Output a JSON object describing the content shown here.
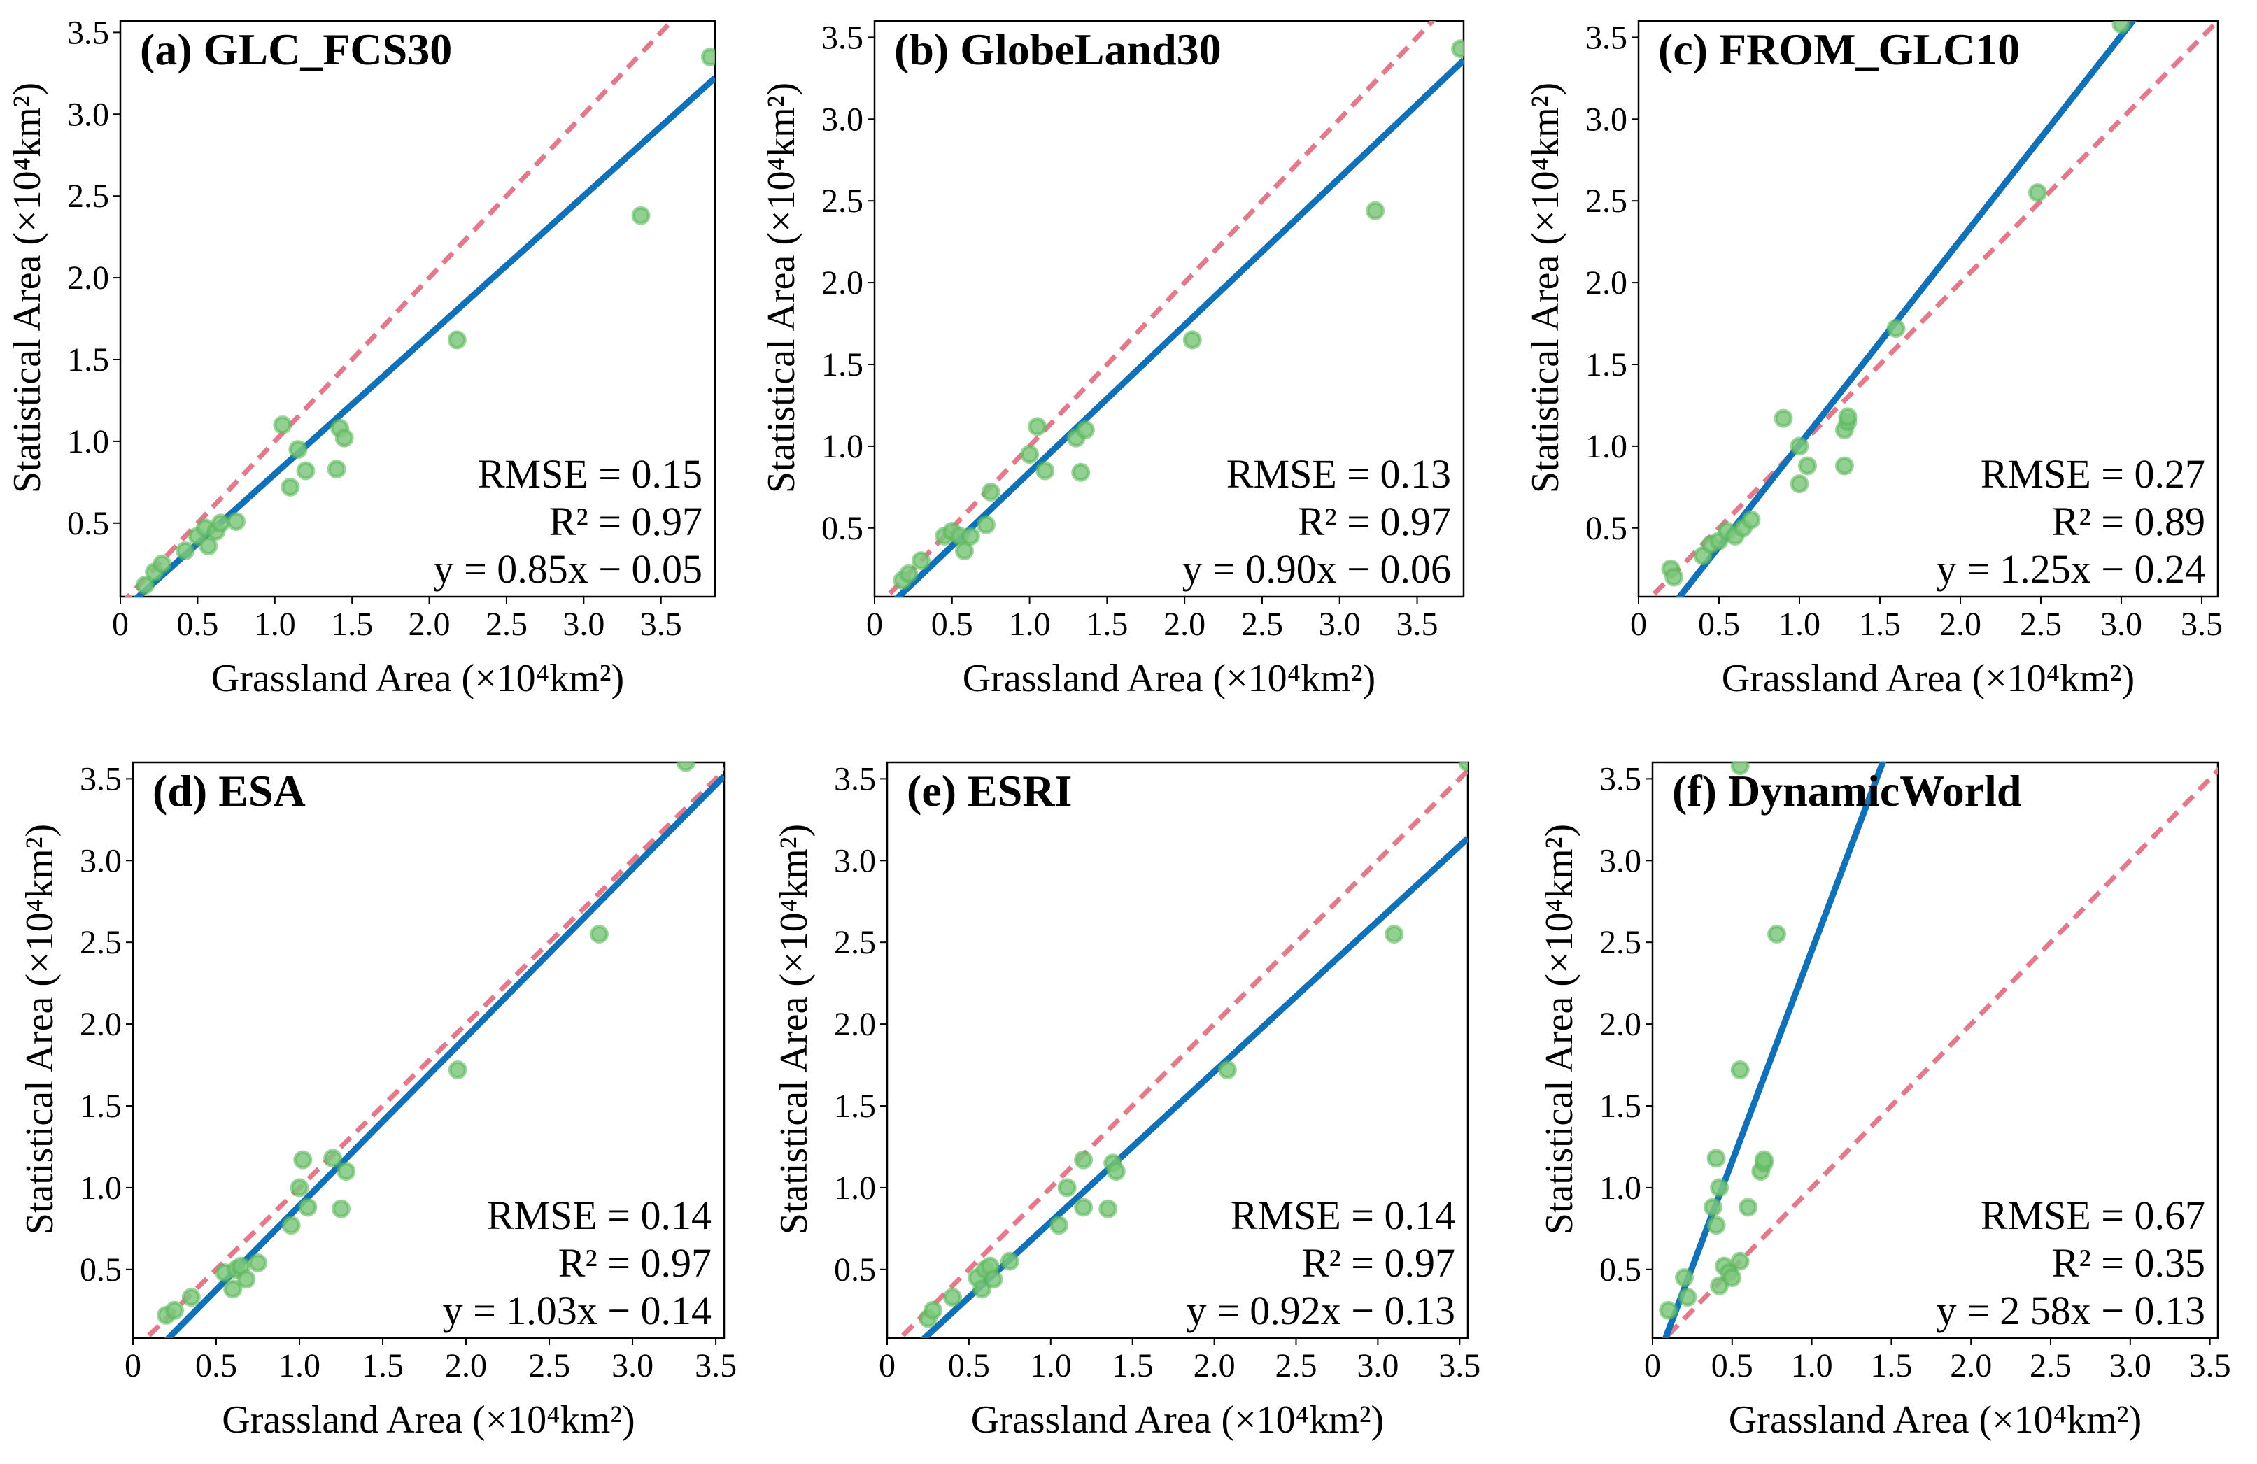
{
  "figure": {
    "x_label": "Grassland Area (×10⁴km²)",
    "y_label": "Statistical  Area (×10⁴km²)"
  },
  "colors": {
    "fit_line": "#1070b8",
    "identity_line": "#e27a8c",
    "point_fill": "#7ec87e",
    "point_stroke": "#5cb85c",
    "frame": "#000000"
  },
  "chart_data": [
    {
      "type": "scatter",
      "title": "(a) GLC_FCS30",
      "xlabel": "Grassland Area (×10⁴km²)",
      "ylabel": "Statistical  Area (×10⁴km²)",
      "xlim": [
        0,
        3.85
      ],
      "ylim": [
        0.05,
        3.57
      ],
      "xticks": [
        "0",
        "0.5",
        "1.0",
        "1.5",
        "2.0",
        "2.5",
        "3.0",
        "3.5"
      ],
      "yticks": [
        "0.5",
        "1.0",
        "1.5",
        "2.0",
        "2.5",
        "3.0",
        "3.5"
      ],
      "stats": [
        "RMSE = 0.15",
        "R² = 0.97",
        "y = 0.85x − 0.05"
      ],
      "fit": {
        "slope": 0.85,
        "intercept": -0.05
      },
      "points": [
        [
          0.16,
          0.12
        ],
        [
          0.22,
          0.2
        ],
        [
          0.27,
          0.25
        ],
        [
          0.42,
          0.33
        ],
        [
          0.5,
          0.42
        ],
        [
          0.55,
          0.47
        ],
        [
          0.57,
          0.36
        ],
        [
          0.62,
          0.45
        ],
        [
          0.65,
          0.5
        ],
        [
          0.75,
          0.51
        ],
        [
          1.05,
          1.1
        ],
        [
          1.1,
          0.72
        ],
        [
          1.15,
          0.95
        ],
        [
          1.2,
          0.82
        ],
        [
          1.4,
          0.83
        ],
        [
          1.42,
          1.08
        ],
        [
          1.45,
          1.02
        ],
        [
          2.18,
          1.62
        ],
        [
          3.37,
          2.38
        ],
        [
          3.82,
          3.35
        ]
      ]
    },
    {
      "type": "scatter",
      "title": "(b) GlobeLand30",
      "xlabel": "Grassland Area (×10⁴km²)",
      "ylabel": "Statistical  Area (×10⁴km²)",
      "xlim": [
        0,
        3.8
      ],
      "ylim": [
        0.08,
        3.6
      ],
      "xticks": [
        "0",
        "0.5",
        "1.0",
        "1.5",
        "2.0",
        "2.5",
        "3.0",
        "3.5"
      ],
      "yticks": [
        "0.5",
        "1.0",
        "1.5",
        "2.0",
        "2.5",
        "3.0",
        "3.5"
      ],
      "stats": [
        "RMSE = 0.13",
        "R² = 0.97",
        "y = 0.90x − 0.06"
      ],
      "fit": {
        "slope": 0.9,
        "intercept": -0.06
      },
      "points": [
        [
          0.18,
          0.18
        ],
        [
          0.22,
          0.22
        ],
        [
          0.3,
          0.3
        ],
        [
          0.45,
          0.45
        ],
        [
          0.5,
          0.48
        ],
        [
          0.55,
          0.45
        ],
        [
          0.58,
          0.36
        ],
        [
          0.62,
          0.45
        ],
        [
          0.72,
          0.52
        ],
        [
          0.75,
          0.72
        ],
        [
          1.0,
          0.95
        ],
        [
          1.05,
          1.12
        ],
        [
          1.1,
          0.85
        ],
        [
          1.3,
          1.05
        ],
        [
          1.33,
          0.84
        ],
        [
          1.36,
          1.1
        ],
        [
          2.05,
          1.65
        ],
        [
          3.23,
          2.44
        ],
        [
          3.78,
          3.43
        ]
      ]
    },
    {
      "type": "scatter",
      "title": "(c) FROM_GLC10",
      "xlabel": "Grassland Area (×10⁴km²)",
      "ylabel": "Statistical  Area (×10⁴km²)",
      "xlim": [
        0,
        3.6
      ],
      "ylim": [
        0.08,
        3.6
      ],
      "xticks": [
        "0",
        "0.5",
        "1.0",
        "1.5",
        "2.0",
        "2.5",
        "3.0",
        "3.5"
      ],
      "yticks": [
        "0.5",
        "1.0",
        "1.5",
        "2.0",
        "2.5",
        "3.0",
        "3.5"
      ],
      "stats": [
        "RMSE = 0.27",
        "R² = 0.89",
        "y = 1.25x − 0.24"
      ],
      "fit": {
        "slope": 1.25,
        "intercept": -0.24
      },
      "points": [
        [
          0.2,
          0.25
        ],
        [
          0.22,
          0.2
        ],
        [
          0.4,
          0.33
        ],
        [
          0.45,
          0.4
        ],
        [
          0.5,
          0.42
        ],
        [
          0.55,
          0.48
        ],
        [
          0.6,
          0.45
        ],
        [
          0.65,
          0.5
        ],
        [
          0.7,
          0.55
        ],
        [
          0.9,
          1.17
        ],
        [
          1.0,
          0.77
        ],
        [
          1.0,
          1.0
        ],
        [
          1.05,
          0.88
        ],
        [
          1.28,
          0.88
        ],
        [
          1.28,
          1.1
        ],
        [
          1.3,
          1.15
        ],
        [
          1.3,
          1.18
        ],
        [
          1.6,
          1.72
        ],
        [
          2.48,
          2.55
        ],
        [
          3.0,
          3.58
        ]
      ]
    },
    {
      "type": "scatter",
      "title": "(d) ESA",
      "xlabel": "Grassland Area (×10⁴km²)",
      "ylabel": "Statistical  Area (×10⁴km²)",
      "xlim": [
        0,
        3.55
      ],
      "ylim": [
        0.08,
        3.6
      ],
      "xticks": [
        "0",
        "0.5",
        "1.0",
        "1.5",
        "2.0",
        "2.5",
        "3.0",
        "3.5"
      ],
      "yticks": [
        "0.5",
        "1.0",
        "1.5",
        "2.0",
        "2.5",
        "3.0",
        "3.5"
      ],
      "stats": [
        "RMSE = 0.14",
        "R² = 0.97",
        "y = 1.03x − 0.14"
      ],
      "fit": {
        "slope": 1.03,
        "intercept": -0.14
      },
      "points": [
        [
          0.2,
          0.22
        ],
        [
          0.25,
          0.25
        ],
        [
          0.35,
          0.33
        ],
        [
          0.55,
          0.48
        ],
        [
          0.6,
          0.38
        ],
        [
          0.62,
          0.5
        ],
        [
          0.65,
          0.52
        ],
        [
          0.68,
          0.44
        ],
        [
          0.75,
          0.54
        ],
        [
          0.95,
          0.77
        ],
        [
          1.0,
          1.0
        ],
        [
          1.02,
          1.17
        ],
        [
          1.05,
          0.88
        ],
        [
          1.2,
          1.18
        ],
        [
          1.25,
          0.87
        ],
        [
          1.28,
          1.1
        ],
        [
          1.95,
          1.72
        ],
        [
          2.8,
          2.55
        ],
        [
          3.32,
          3.6
        ]
      ]
    },
    {
      "type": "scatter",
      "title": "(e) ESRI",
      "xlabel": "Grassland Area (×10⁴km²)",
      "ylabel": "Statistical  Area (×10⁴km²)",
      "xlim": [
        0,
        3.55
      ],
      "ylim": [
        0.08,
        3.6
      ],
      "xticks": [
        "0",
        "0.5",
        "1.0",
        "1.5",
        "2.0",
        "2.5",
        "3.0",
        "3.5"
      ],
      "yticks": [
        "0.5",
        "1.0",
        "1.5",
        "2.0",
        "2.5",
        "3.0",
        "3.5"
      ],
      "stats": [
        "RMSE = 0.14",
        "R² = 0.97",
        "y = 0.92x − 0.13"
      ],
      "fit": {
        "slope": 0.92,
        "intercept": -0.13
      },
      "points": [
        [
          0.25,
          0.2
        ],
        [
          0.28,
          0.25
        ],
        [
          0.4,
          0.33
        ],
        [
          0.55,
          0.45
        ],
        [
          0.58,
          0.38
        ],
        [
          0.6,
          0.5
        ],
        [
          0.63,
          0.52
        ],
        [
          0.65,
          0.44
        ],
        [
          0.75,
          0.55
        ],
        [
          1.05,
          0.77
        ],
        [
          1.1,
          1.0
        ],
        [
          1.2,
          1.17
        ],
        [
          1.2,
          0.88
        ],
        [
          1.35,
          0.87
        ],
        [
          1.38,
          1.15
        ],
        [
          1.4,
          1.1
        ],
        [
          2.08,
          1.72
        ],
        [
          3.1,
          2.55
        ],
        [
          3.55,
          3.6
        ]
      ]
    },
    {
      "type": "scatter",
      "title": "(f) DynamicWorld",
      "xlabel": "Grassland Area (×10⁴km²)",
      "ylabel": "Statistical  Area (×10⁴km²)",
      "xlim": [
        0,
        3.55
      ],
      "ylim": [
        0.08,
        3.6
      ],
      "xticks": [
        "0",
        "0.5",
        "1.0",
        "1.5",
        "2.0",
        "2.5",
        "3.0",
        "3.5"
      ],
      "yticks": [
        "0.5",
        "1.0",
        "1.5",
        "2.0",
        "2.5",
        "3.0",
        "3.5"
      ],
      "stats": [
        "RMSE = 0.67",
        "R² = 0.35",
        "y = 2 58x − 0.13"
      ],
      "fit": {
        "slope": 2.58,
        "intercept": -0.13
      },
      "points": [
        [
          0.1,
          0.25
        ],
        [
          0.2,
          0.45
        ],
        [
          0.22,
          0.33
        ],
        [
          0.38,
          0.88
        ],
        [
          0.4,
          1.18
        ],
        [
          0.4,
          0.77
        ],
        [
          0.42,
          1.0
        ],
        [
          0.42,
          0.4
        ],
        [
          0.45,
          0.52
        ],
        [
          0.48,
          0.48
        ],
        [
          0.5,
          0.45
        ],
        [
          0.55,
          1.72
        ],
        [
          0.55,
          0.55
        ],
        [
          0.6,
          0.88
        ],
        [
          0.68,
          1.1
        ],
        [
          0.7,
          1.15
        ],
        [
          0.7,
          1.17
        ],
        [
          0.78,
          2.55
        ],
        [
          0.55,
          3.58
        ]
      ]
    }
  ]
}
